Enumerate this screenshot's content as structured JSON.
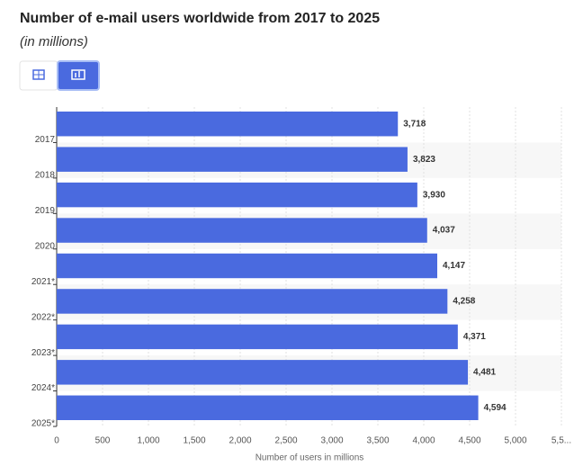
{
  "chart_data": {
    "type": "bar",
    "orientation": "horizontal",
    "title": "Number of e-mail users worldwide from 2017 to 2025",
    "subtitle": "(in millions)",
    "xlabel": "Number of users in millions",
    "categories": [
      "2017",
      "2018",
      "2019",
      "2020",
      "2021*",
      "2022*",
      "2023*",
      "2024*",
      "2025*"
    ],
    "values": [
      3718,
      3823,
      3930,
      4037,
      4147,
      4258,
      4371,
      4481,
      4594
    ],
    "value_labels": [
      "3,718",
      "3,823",
      "3,930",
      "4,037",
      "4,147",
      "4,258",
      "4,371",
      "4,481",
      "4,594"
    ],
    "color": "#4a6adf",
    "xlim": [
      0,
      5500
    ],
    "xticks": [
      0,
      500,
      {
        "value": 1000,
        "label": "1,000"
      },
      {
        "value": 1500,
        "label": "1,500"
      },
      {
        "value": 2000,
        "label": "2,000"
      },
      {
        "value": 2500,
        "label": "2,500"
      },
      {
        "value": 3000,
        "label": "3,000"
      },
      {
        "value": 3500,
        "label": "3,500"
      },
      {
        "value": 4000,
        "label": "4,000"
      },
      {
        "value": 4500,
        "label": "4,500"
      },
      {
        "value": 5000,
        "label": "5,000"
      },
      {
        "value": 5500,
        "label": "5,5..."
      }
    ],
    "grid": true
  }
}
